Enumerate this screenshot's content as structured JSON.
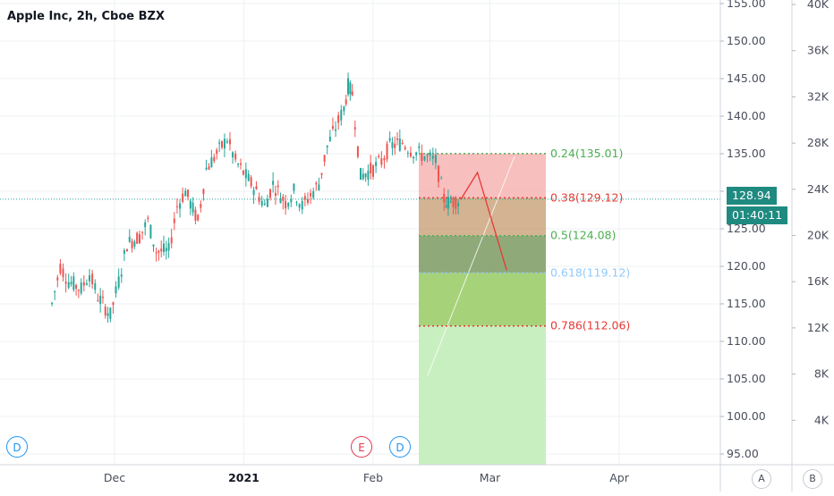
{
  "symbol": {
    "title": "Apple Inc, 2h, Cboe BZX"
  },
  "colors": {
    "up": "#26a69a",
    "down": "#ef5350",
    "grid": "#eef0f3",
    "axis_text": "#4a4f5c",
    "price_line": "#26a69a",
    "fib_green": "#4caf50",
    "fib_red": "#e53935",
    "fib_blue": "#90caf9",
    "label_bg": "#1f8a80"
  },
  "price_axis": {
    "labels": [
      "155.00",
      "150.00",
      "145.00",
      "140.00",
      "135.00",
      "130.00",
      "125.00",
      "120.00",
      "115.00",
      "110.00",
      "105.00",
      "100.00",
      "95.00"
    ]
  },
  "volume_axis": {
    "labels": [
      "40K",
      "36K",
      "32K",
      "28K",
      "24K",
      "20K",
      "16K",
      "12K",
      "8K",
      "4K"
    ]
  },
  "time_axis": {
    "labels": [
      "Dec",
      "2021",
      "Feb",
      "Mar",
      "Apr"
    ]
  },
  "current_price": {
    "value": "128.94",
    "countdown": "01:40:11"
  },
  "fib_levels": [
    {
      "label": "0.24(135.01)",
      "price": 135.01,
      "ratio": 0.24
    },
    {
      "label": "0.38(129.12)",
      "price": 129.12,
      "ratio": 0.38
    },
    {
      "label": "0.5(124.08)",
      "price": 124.08,
      "ratio": 0.5
    },
    {
      "label": "0.618(119.12)",
      "price": 119.12,
      "ratio": 0.618
    },
    {
      "label": "0.786(112.06)",
      "price": 112.06,
      "ratio": 0.786
    }
  ],
  "events": [
    {
      "label": "D",
      "kind": "dividend"
    },
    {
      "label": "E",
      "kind": "earnings"
    },
    {
      "label": "D",
      "kind": "dividend"
    }
  ],
  "scale_buttons": {
    "auto": "A",
    "b": "B"
  },
  "chart_data": {
    "type": "candlestick",
    "title": "Apple Inc, 2h, Cboe BZX",
    "ylim": [
      92,
      156
    ],
    "price_path": [
      [
        "Nov 16",
        115
      ],
      [
        "Nov 18",
        120
      ],
      [
        "Nov 20",
        118
      ],
      [
        "Nov 23",
        117
      ],
      [
        "Nov 25",
        119
      ],
      [
        "Nov 27",
        116
      ],
      [
        "Nov 30",
        113.5
      ],
      [
        "Dec 02",
        118
      ],
      [
        "Dec 04",
        123
      ],
      [
        "Dec 07",
        124
      ],
      [
        "Dec 09",
        126
      ],
      [
        "Dec 11",
        122
      ],
      [
        "Dec 14",
        122
      ],
      [
        "Dec 16",
        128
      ],
      [
        "Dec 18",
        130
      ],
      [
        "Dec 21",
        126
      ],
      [
        "Dec 23",
        133
      ],
      [
        "Dec 28",
        137
      ],
      [
        "Dec 30",
        134
      ],
      [
        "Jan 04",
        130
      ],
      [
        "Jan 06",
        128
      ],
      [
        "Jan 08",
        131
      ],
      [
        "Jan 11",
        128.5
      ],
      [
        "Jan 13",
        130
      ],
      [
        "Jan 15",
        128
      ],
      [
        "Jan 19",
        131
      ],
      [
        "Jan 21",
        136
      ],
      [
        "Jan 25",
        141
      ],
      [
        "Jan 26",
        144
      ],
      [
        "Jan 27",
        143
      ],
      [
        "Jan 29",
        132
      ],
      [
        "Feb 01",
        133
      ],
      [
        "Feb 03",
        134
      ],
      [
        "Feb 05",
        136
      ],
      [
        "Feb 08",
        136.5
      ],
      [
        "Feb 10",
        135.5
      ],
      [
        "Feb 12",
        135
      ],
      [
        "Feb 16",
        134
      ],
      [
        "Feb 18",
        129
      ],
      [
        "Feb 19",
        128.5
      ],
      [
        "Feb 22",
        128.9
      ]
    ],
    "projection": [
      [
        "Feb 22",
        128.9
      ],
      [
        "Feb 26",
        132.5
      ],
      [
        "Mar 05",
        119.5
      ]
    ]
  }
}
